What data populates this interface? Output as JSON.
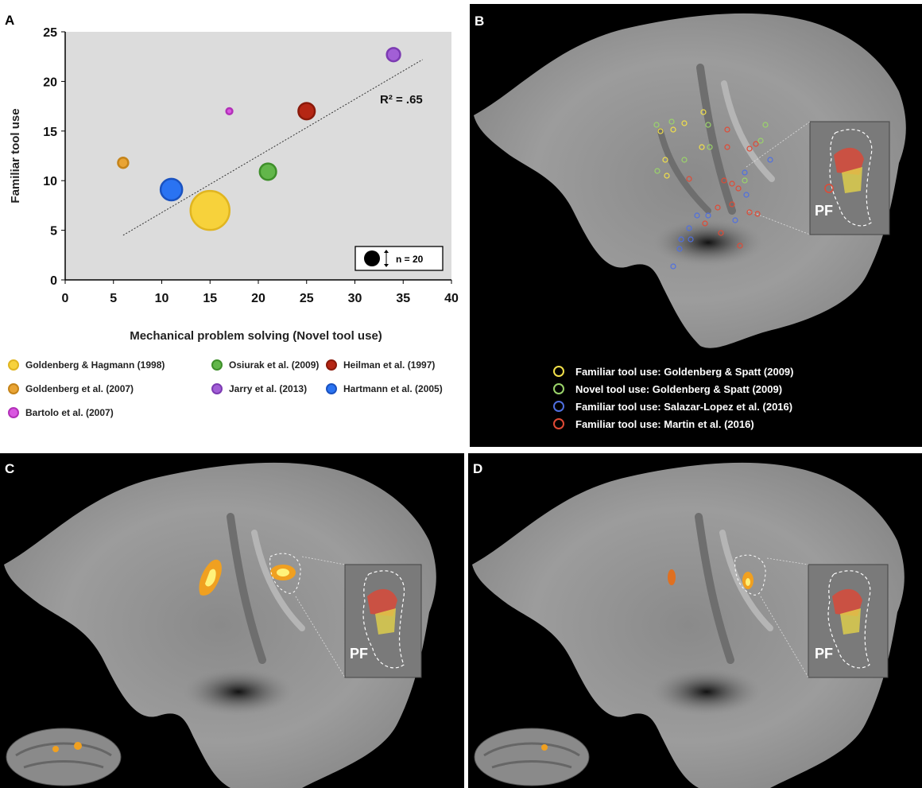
{
  "panels": {
    "a_letter": "A",
    "b_letter": "B",
    "c_letter": "C",
    "d_letter": "D"
  },
  "chart_data": {
    "type": "scatter",
    "xlabel": "Mechanical problem solving (Novel tool use)",
    "ylabel": "Familiar tool use",
    "xlim": [
      0,
      40
    ],
    "ylim": [
      0,
      25
    ],
    "xticks": [
      0,
      5,
      10,
      15,
      20,
      25,
      30,
      35,
      40
    ],
    "yticks": [
      0,
      5,
      10,
      15,
      20,
      25
    ],
    "annotation": "R² = .65",
    "size_key_label": "n = 20",
    "trendline": {
      "x": [
        6,
        37
      ],
      "y": [
        4.5,
        22.2
      ]
    },
    "series": [
      {
        "name": "Goldenberg & Hagmann (1998)",
        "x": 15,
        "y": 7,
        "size": 38,
        "color": "#f7d23b",
        "stroke": "#e0b520"
      },
      {
        "name": "Goldenberg et al. (2007)",
        "x": 6,
        "y": 11.8,
        "size": 10,
        "color": "#e9a434",
        "stroke": "#c5841a"
      },
      {
        "name": "Bartolo et al. (2007)",
        "x": 17,
        "y": 17,
        "size": 6,
        "color": "#d957e0",
        "stroke": "#b230b8"
      },
      {
        "name": "Osiurak et al. (2009)",
        "x": 21,
        "y": 10.9,
        "size": 16,
        "color": "#62b64a",
        "stroke": "#3e8f2a"
      },
      {
        "name": "Jarry et al. (2013)",
        "x": 34,
        "y": 22.7,
        "size": 13,
        "color": "#a25fd6",
        "stroke": "#7c3bb2"
      },
      {
        "name": "Heilman et al. (1997)",
        "x": 25,
        "y": 17,
        "size": 16,
        "color": "#b52614",
        "stroke": "#8a1a0b"
      },
      {
        "name": "Hartmann et al. (2005)",
        "x": 11,
        "y": 9.1,
        "size": 21,
        "color": "#2a73f2",
        "stroke": "#1a52c0"
      }
    ]
  },
  "legend_b": [
    {
      "label": "Familiar tool use: Goldenberg & Spatt (2009)",
      "color": "#f2e04a"
    },
    {
      "label": "Novel tool use: Goldenberg & Spatt (2009)",
      "color": "#9bd46a"
    },
    {
      "label": "Familiar tool use: Salazar-Lopez et al. (2016)",
      "color": "#4f6fe0"
    },
    {
      "label": "Familiar tool use: Martin et al. (2016)",
      "color": "#e04a35"
    }
  ],
  "inset_label": "PF"
}
